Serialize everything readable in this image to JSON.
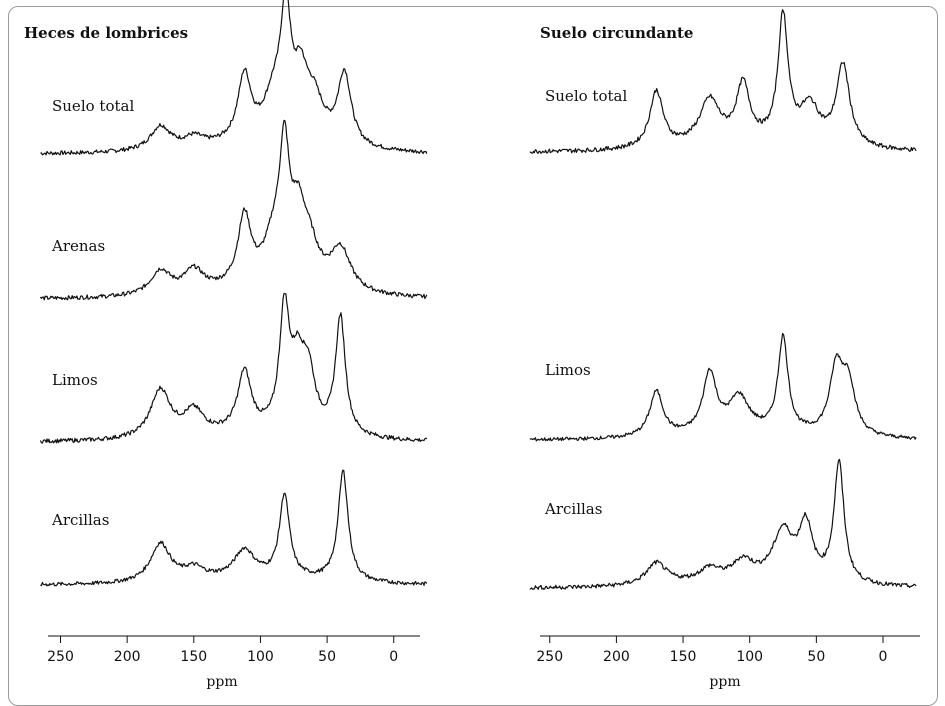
{
  "chart_data": [
    {
      "type": "line",
      "title": "Heces de lombrices",
      "xlabel": "ppm",
      "xlim": [
        275,
        -25
      ],
      "xreversed": true,
      "xticks": [
        250,
        200,
        150,
        100,
        50,
        0
      ],
      "series": [
        {
          "name": "Suelo total",
          "peaks": [
            [
              175,
              0.2
            ],
            [
              150,
              0.08
            ],
            [
              112,
              0.55
            ],
            [
              90,
              0.35
            ],
            [
              81,
              1.0
            ],
            [
              70,
              0.45
            ],
            [
              60,
              0.35
            ],
            [
              37,
              0.6
            ]
          ]
        },
        {
          "name": "Arenas",
          "peaks": [
            [
              175,
              0.2
            ],
            [
              150,
              0.18
            ],
            [
              112,
              0.58
            ],
            [
              90,
              0.35
            ],
            [
              82,
              1.0
            ],
            [
              72,
              0.45
            ],
            [
              64,
              0.35
            ],
            [
              40,
              0.35
            ]
          ]
        },
        {
          "name": "Limos",
          "peaks": [
            [
              175,
              0.4
            ],
            [
              150,
              0.2
            ],
            [
              112,
              0.5
            ],
            [
              82,
              0.98
            ],
            [
              72,
              0.5
            ],
            [
              64,
              0.45
            ],
            [
              40,
              0.98
            ]
          ]
        },
        {
          "name": "Arcillas",
          "peaks": [
            [
              175,
              0.35
            ],
            [
              150,
              0.1
            ],
            [
              112,
              0.25
            ],
            [
              82,
              0.75
            ],
            [
              38,
              1.0
            ]
          ]
        }
      ]
    },
    {
      "type": "line",
      "title": "Suelo circundante",
      "xlabel": "ppm",
      "xlim": [
        275,
        -25
      ],
      "xreversed": true,
      "xticks": [
        250,
        200,
        150,
        100,
        50,
        0
      ],
      "series": [
        {
          "name": "Suelo total",
          "peaks": [
            [
              170,
              0.45
            ],
            [
              130,
              0.35
            ],
            [
              105,
              0.45
            ],
            [
              75,
              1.0
            ],
            [
              55,
              0.3
            ],
            [
              30,
              0.65
            ]
          ]
        },
        {
          "name": "Limos",
          "peaks": [
            [
              170,
              0.45
            ],
            [
              130,
              0.6
            ],
            [
              108,
              0.35
            ],
            [
              75,
              0.95
            ],
            [
              35,
              0.65
            ],
            [
              26,
              0.5
            ]
          ]
        },
        {
          "name": "Arcillas",
          "peaks": [
            [
              170,
              0.18
            ],
            [
              130,
              0.1
            ],
            [
              105,
              0.15
            ],
            [
              75,
              0.4
            ],
            [
              58,
              0.45
            ],
            [
              33,
              1.0
            ]
          ]
        }
      ]
    }
  ]
}
